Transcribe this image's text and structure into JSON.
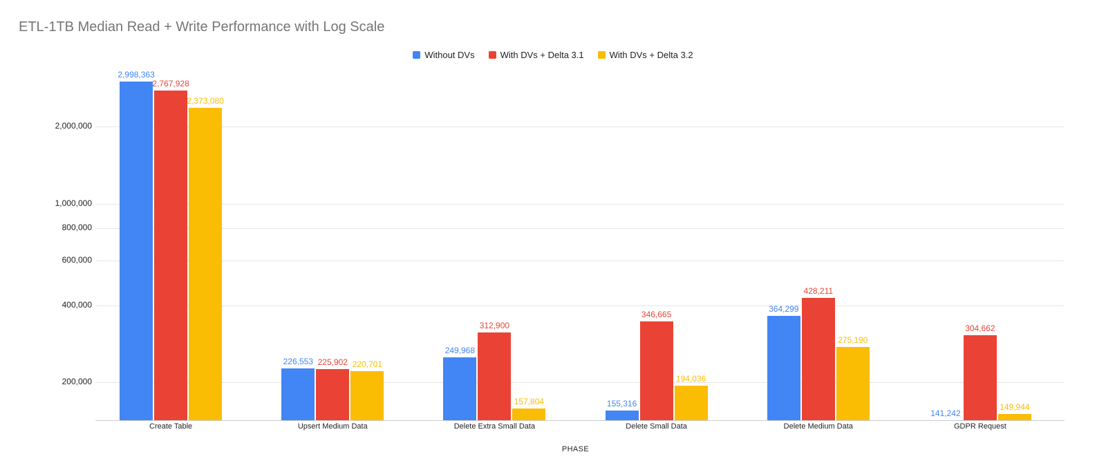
{
  "chart_data": {
    "type": "bar",
    "title": "ETL-1TB Median Read + Write Performance with Log Scale",
    "xlabel": "PHASE",
    "ylabel": "",
    "yscale": "log",
    "ylim": [
      142100,
      3200000
    ],
    "yticks": [
      200000,
      400000,
      600000,
      800000,
      1000000,
      2000000
    ],
    "grid": true,
    "legend_position": "top-center",
    "data_labels": true,
    "categories": [
      "Create Table",
      "Upsert Medium Data",
      "Delete Extra Small Data",
      "Delete Small Data",
      "Delete Medium Data",
      "GDPR Request"
    ],
    "series": [
      {
        "name": "Without DVs",
        "color": "#4285F4",
        "values": [
          2998363,
          226553,
          249968,
          155316,
          364299,
          141242
        ]
      },
      {
        "name": "With DVs + Delta 3.1",
        "color": "#EA4335",
        "values": [
          2767928,
          225902,
          312900,
          346665,
          428211,
          304662
        ]
      },
      {
        "name": "With DVs + Delta 3.2",
        "color": "#FBBC04",
        "values": [
          2373080,
          220701,
          157804,
          194036,
          275190,
          149944
        ]
      }
    ]
  }
}
